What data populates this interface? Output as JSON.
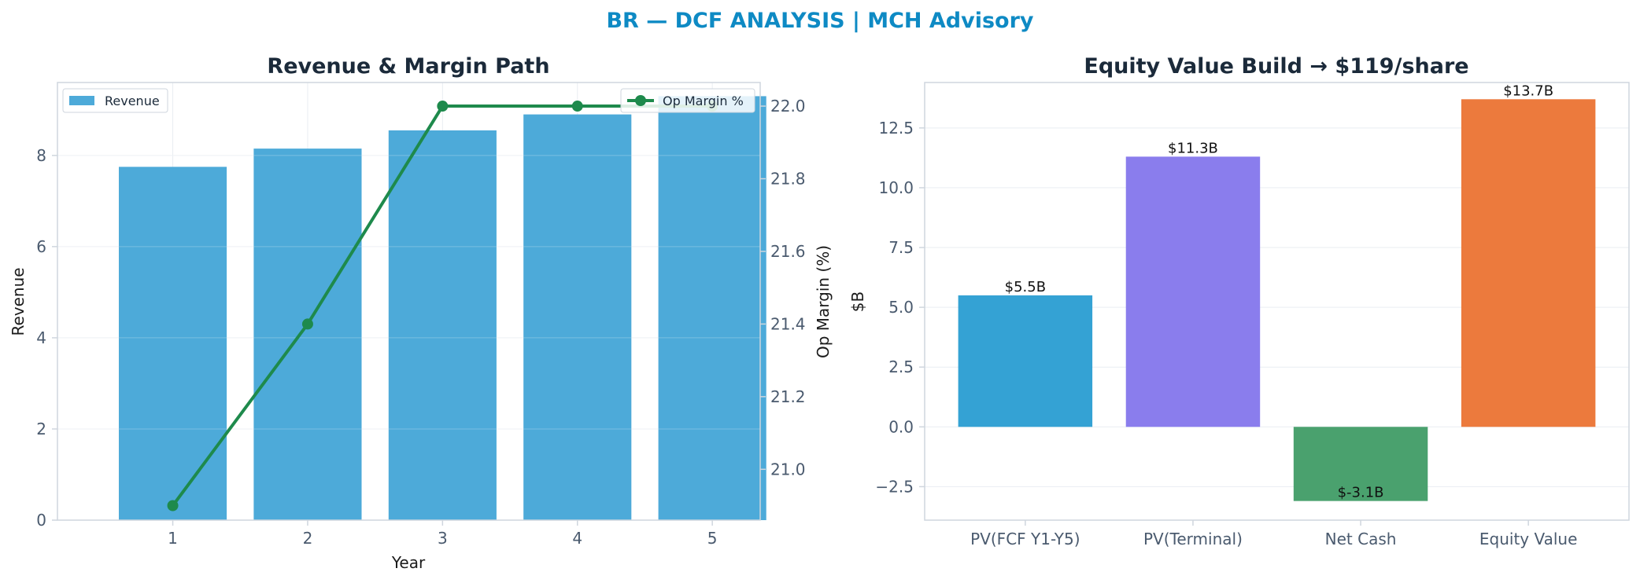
{
  "suptitle": "BR — DCF ANALYSIS | MCH Advisory",
  "colors": {
    "suptitle": "#0e8ac4",
    "title": "#1b2a3a",
    "tick": "#4a5a6e",
    "axis_label": "#1b1b1b",
    "grid": "#e9edf2",
    "spine": "#cfd6de",
    "revenue_bar": "#4daad9",
    "margin_line": "#1e8a4c",
    "waterfall": [
      "#34a2d4",
      "#8a7ded",
      "#4aa16e",
      "#ec7a3d"
    ]
  },
  "chart_data": [
    {
      "type": "bar",
      "title": "Revenue & Margin Path",
      "xlabel": "Year",
      "ylabel": "Revenue",
      "y2label": "Op Margin (%)",
      "categories": [
        "1",
        "2",
        "3",
        "4",
        "5"
      ],
      "ylim": [
        0,
        9.6
      ],
      "yticks": [
        0,
        2,
        4,
        6,
        8
      ],
      "y2lim": [
        20.86,
        22.065
      ],
      "y2ticks": [
        "21.0",
        "21.2",
        "21.4",
        "21.6",
        "21.8",
        "22.0"
      ],
      "grid": true,
      "series": [
        {
          "name": "Revenue",
          "type": "bar",
          "axis": "left",
          "values": [
            7.75,
            8.15,
            8.55,
            8.9,
            9.3
          ]
        },
        {
          "name": "Op Margin %",
          "type": "line",
          "axis": "right",
          "values": [
            20.9,
            21.4,
            22.0,
            22.0,
            22.0
          ]
        }
      ],
      "legends": [
        {
          "label": "Revenue",
          "placement": "upper-left"
        },
        {
          "label": "Op Margin %",
          "placement": "upper-right"
        }
      ]
    },
    {
      "type": "bar",
      "title": "Equity Value Build → $119/share",
      "xlabel": "",
      "ylabel": "$B",
      "categories": [
        "PV(FCF Y1-Y5)",
        "PV(Terminal)",
        "Net Cash",
        "Equity Value"
      ],
      "values": [
        5.5,
        11.3,
        -3.1,
        13.7
      ],
      "data_labels": [
        "$5.5B",
        "$11.3B",
        "$-3.1B",
        "$13.7B"
      ],
      "ylim": [
        -3.9,
        14.4
      ],
      "yticks": [
        "−2.5",
        "0.0",
        "2.5",
        "5.0",
        "7.5",
        "10.0",
        "12.5"
      ],
      "grid": true
    }
  ]
}
